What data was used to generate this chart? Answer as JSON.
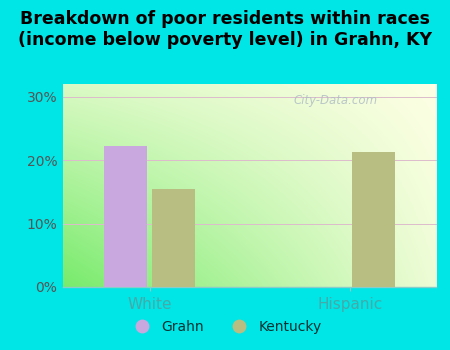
{
  "title": "Breakdown of poor residents within races\n(income below poverty level) in Grahn, KY",
  "categories": [
    "White",
    "Hispanic"
  ],
  "grahn_values": [
    22.3,
    0.0
  ],
  "kentucky_values": [
    15.5,
    21.3
  ],
  "grahn_color": "#c9a8e0",
  "kentucky_color": "#b8be82",
  "background_outer": "#00e5e5",
  "ylabel_ticks": [
    0,
    10,
    20,
    30
  ],
  "ylabel_labels": [
    "0%",
    "10%",
    "20%",
    "30%"
  ],
  "ylim": [
    0,
    32
  ],
  "legend_labels": [
    "Grahn",
    "Kentucky"
  ],
  "bar_width": 0.32,
  "group_positions": [
    0.75,
    2.25
  ],
  "watermark": "City-Data.com",
  "title_fontsize": 12.5,
  "ytick_color": "#555555",
  "xtick_color": "#44aaaa",
  "legend_text_color": "#003333"
}
